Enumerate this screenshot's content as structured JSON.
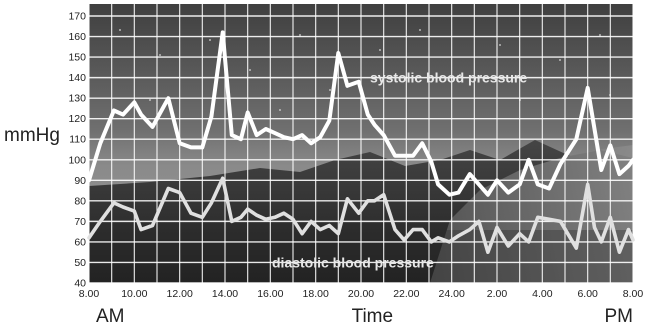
{
  "chart_data": {
    "type": "line",
    "title": "",
    "ylabel": "mmHg",
    "xlabel": "Time",
    "x_start_label": "AM",
    "x_end_label": "PM",
    "ylim": [
      40,
      170
    ],
    "y_ticks": [
      40,
      50,
      60,
      70,
      80,
      90,
      100,
      110,
      120,
      130,
      140,
      150,
      160,
      170
    ],
    "x_tick_labels": [
      "8.00",
      "10.00",
      "12.00",
      "14.00",
      "16.00",
      "18.00",
      "20.00",
      "22.00",
      "24.00",
      "2.00",
      "4.00",
      "6.00",
      "8.00"
    ],
    "x_tick_hours": [
      8,
      10,
      12,
      14,
      16,
      18,
      20,
      22,
      24,
      26,
      28,
      30,
      32
    ],
    "grid": true,
    "series": [
      {
        "name": "systolic blood pressure",
        "color": "#ffffff",
        "x": [
          8.0,
          8.5,
          9.1,
          9.5,
          10.0,
          10.3,
          10.8,
          11.5,
          12.0,
          12.5,
          13.0,
          13.4,
          13.9,
          14.3,
          14.7,
          15.0,
          15.4,
          15.8,
          16.2,
          16.6,
          17.0,
          17.4,
          17.8,
          18.2,
          18.6,
          19.0,
          19.4,
          19.9,
          20.3,
          20.6,
          21.0,
          21.5,
          21.9,
          22.3,
          22.7,
          23.1,
          23.4,
          23.9,
          24.3,
          24.8,
          25.2,
          25.6,
          26.0,
          26.5,
          27.0,
          27.4,
          27.8,
          28.3,
          28.8,
          29.5,
          30.0,
          30.3,
          30.6,
          31.0,
          31.4,
          31.8,
          32.0
        ],
        "y": [
          90,
          108,
          124,
          122,
          128,
          122,
          116,
          130,
          108,
          106,
          106,
          121,
          162,
          112,
          110,
          123,
          112,
          115,
          113,
          111,
          110,
          112,
          108,
          111,
          119,
          152,
          136,
          138,
          122,
          117,
          112,
          102,
          102,
          102,
          108,
          99,
          88,
          83,
          84,
          93,
          88,
          83,
          90,
          84,
          88,
          100,
          88,
          86,
          98,
          110,
          135,
          115,
          95,
          107,
          93,
          97,
          100
        ]
      },
      {
        "name": "diastolic blood pressure",
        "color": "#e0e0e0",
        "x": [
          8.0,
          8.5,
          9.1,
          9.5,
          10.0,
          10.3,
          10.8,
          11.5,
          12.0,
          12.5,
          13.0,
          13.4,
          13.9,
          14.3,
          14.7,
          15.0,
          15.4,
          15.8,
          16.2,
          16.6,
          17.0,
          17.4,
          17.8,
          18.2,
          18.6,
          19.0,
          19.4,
          19.9,
          20.3,
          20.6,
          21.0,
          21.5,
          21.9,
          22.3,
          22.7,
          23.1,
          23.4,
          23.9,
          24.3,
          24.8,
          25.2,
          25.6,
          26.0,
          26.5,
          27.0,
          27.4,
          27.8,
          28.3,
          28.8,
          29.5,
          30.0,
          30.3,
          30.6,
          31.0,
          31.4,
          31.8,
          32.0
        ],
        "y": [
          62,
          70,
          79,
          77,
          75,
          66,
          68,
          86,
          84,
          74,
          72,
          79,
          91,
          70,
          72,
          76,
          73,
          71,
          72,
          74,
          71,
          64,
          70,
          66,
          68,
          64,
          81,
          74,
          80,
          80,
          83,
          66,
          61,
          66,
          66,
          60,
          62,
          60,
          63,
          66,
          70,
          55,
          67,
          58,
          64,
          60,
          72,
          71,
          70,
          57,
          88,
          67,
          60,
          72,
          55,
          66,
          61
        ]
      }
    ]
  }
}
